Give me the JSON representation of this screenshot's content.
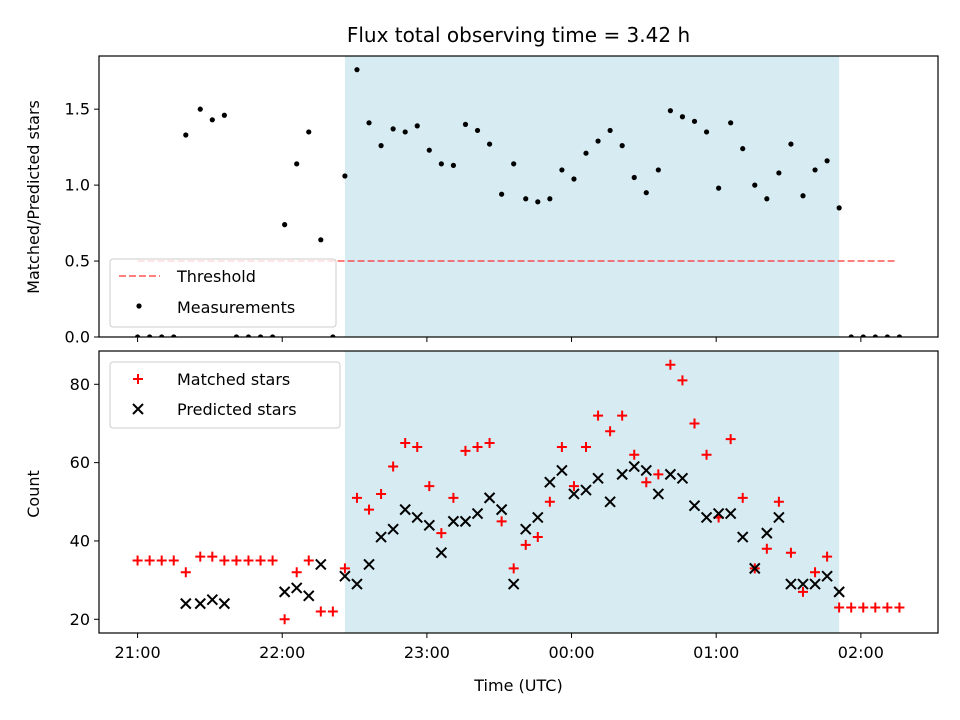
{
  "figure": {
    "title": "Flux total observing time = 3.42 h",
    "xlabel": "Time (UTC)"
  },
  "colors": {
    "shade": "#add8e6",
    "threshold": "#ff0000",
    "measurements": "#000000",
    "matched": "#ff0000",
    "predicted": "#000000"
  },
  "chart_data": [
    {
      "type": "scatter",
      "ylabel": "Matched/Predicted stars",
      "xlim": [
        20.7333,
        2.5333
      ],
      "ylim": [
        0,
        1.85
      ],
      "yticks": [
        0.0,
        0.5,
        1.0,
        1.5
      ],
      "ytick_labels": [
        "0.0",
        "0.5",
        "1.0",
        "1.5"
      ],
      "grid": false,
      "legend_position": "lower-left",
      "shaded_interval": [
        "22:26",
        "01:51"
      ],
      "threshold": {
        "name": "Threshold",
        "y": 0.5,
        "x": [
          "21:00",
          "02:14"
        ]
      },
      "series": [
        {
          "name": "Measurements",
          "points": [
            [
              "21:00",
              0
            ],
            [
              "21:05",
              0
            ],
            [
              "21:10",
              0
            ],
            [
              "21:15",
              0
            ],
            [
              "21:20",
              1.33
            ],
            [
              "21:26",
              1.5
            ],
            [
              "21:31",
              1.43
            ],
            [
              "21:36",
              1.46
            ],
            [
              "21:41",
              0
            ],
            [
              "21:46",
              0
            ],
            [
              "21:51",
              0
            ],
            [
              "21:56",
              0
            ],
            [
              "22:01",
              0.74
            ],
            [
              "22:06",
              1.14
            ],
            [
              "22:11",
              1.35
            ],
            [
              "22:16",
              0.64
            ],
            [
              "22:21",
              0
            ],
            [
              "22:26",
              1.06
            ],
            [
              "22:31",
              1.76
            ],
            [
              "22:36",
              1.41
            ],
            [
              "22:41",
              1.26
            ],
            [
              "22:46",
              1.37
            ],
            [
              "22:51",
              1.35
            ],
            [
              "22:56",
              1.39
            ],
            [
              "23:01",
              1.23
            ],
            [
              "23:06",
              1.14
            ],
            [
              "23:11",
              1.13
            ],
            [
              "23:16",
              1.4
            ],
            [
              "23:21",
              1.36
            ],
            [
              "23:26",
              1.27
            ],
            [
              "23:31",
              0.94
            ],
            [
              "23:36",
              1.14
            ],
            [
              "23:41",
              0.91
            ],
            [
              "23:46",
              0.89
            ],
            [
              "23:51",
              0.91
            ],
            [
              "23:56",
              1.1
            ],
            [
              "00:01",
              1.04
            ],
            [
              "00:06",
              1.21
            ],
            [
              "00:11",
              1.29
            ],
            [
              "00:16",
              1.36
            ],
            [
              "00:21",
              1.26
            ],
            [
              "00:26",
              1.05
            ],
            [
              "00:31",
              0.95
            ],
            [
              "00:36",
              1.1
            ],
            [
              "00:41",
              1.49
            ],
            [
              "00:46",
              1.45
            ],
            [
              "00:51",
              1.42
            ],
            [
              "00:56",
              1.35
            ],
            [
              "01:01",
              0.98
            ],
            [
              "01:06",
              1.41
            ],
            [
              "01:11",
              1.24
            ],
            [
              "01:16",
              1.0
            ],
            [
              "01:21",
              0.91
            ],
            [
              "01:26",
              1.08
            ],
            [
              "01:31",
              1.27
            ],
            [
              "01:36",
              0.93
            ],
            [
              "01:41",
              1.1
            ],
            [
              "01:46",
              1.16
            ],
            [
              "01:51",
              0.85
            ],
            [
              "01:56",
              0
            ],
            [
              "02:01",
              0
            ],
            [
              "02:06",
              0
            ],
            [
              "02:11",
              0
            ],
            [
              "02:16",
              0
            ]
          ]
        }
      ]
    },
    {
      "type": "scatter",
      "ylabel": "Count",
      "xlim": [
        20.7333,
        2.5333
      ],
      "ylim": [
        16.5,
        88.5
      ],
      "yticks": [
        20,
        40,
        60,
        80
      ],
      "ytick_labels": [
        "20",
        "40",
        "60",
        "80"
      ],
      "xticks": [
        "21:00",
        "22:00",
        "23:00",
        "00:00",
        "01:00",
        "02:00"
      ],
      "xtick_labels": [
        "21:00",
        "22:00",
        "23:00",
        "00:00",
        "01:00",
        "02:00"
      ],
      "grid": false,
      "legend_position": "upper-left",
      "shaded_interval": [
        "22:26",
        "01:51"
      ],
      "series": [
        {
          "name": "Matched stars",
          "marker": "plus",
          "points": [
            [
              "21:00",
              35
            ],
            [
              "21:05",
              35
            ],
            [
              "21:10",
              35
            ],
            [
              "21:15",
              35
            ],
            [
              "21:20",
              32
            ],
            [
              "21:26",
              36
            ],
            [
              "21:31",
              36
            ],
            [
              "21:36",
              35
            ],
            [
              "21:41",
              35
            ],
            [
              "21:46",
              35
            ],
            [
              "21:51",
              35
            ],
            [
              "21:56",
              35
            ],
            [
              "22:01",
              20
            ],
            [
              "22:06",
              32
            ],
            [
              "22:11",
              35
            ],
            [
              "22:16",
              22
            ],
            [
              "22:21",
              22
            ],
            [
              "22:26",
              33
            ],
            [
              "22:31",
              51
            ],
            [
              "22:36",
              48
            ],
            [
              "22:41",
              52
            ],
            [
              "22:46",
              59
            ],
            [
              "22:51",
              65
            ],
            [
              "22:56",
              64
            ],
            [
              "23:01",
              54
            ],
            [
              "23:06",
              42
            ],
            [
              "23:11",
              51
            ],
            [
              "23:16",
              63
            ],
            [
              "23:21",
              64
            ],
            [
              "23:26",
              65
            ],
            [
              "23:31",
              45
            ],
            [
              "23:36",
              33
            ],
            [
              "23:41",
              39
            ],
            [
              "23:46",
              41
            ],
            [
              "23:51",
              50
            ],
            [
              "23:56",
              64
            ],
            [
              "00:01",
              54
            ],
            [
              "00:06",
              64
            ],
            [
              "00:11",
              72
            ],
            [
              "00:16",
              68
            ],
            [
              "00:21",
              72
            ],
            [
              "00:26",
              62
            ],
            [
              "00:31",
              55
            ],
            [
              "00:36",
              57
            ],
            [
              "00:41",
              85
            ],
            [
              "00:46",
              81
            ],
            [
              "00:51",
              70
            ],
            [
              "00:56",
              62
            ],
            [
              "01:01",
              46
            ],
            [
              "01:06",
              66
            ],
            [
              "01:11",
              51
            ],
            [
              "01:16",
              33
            ],
            [
              "01:21",
              38
            ],
            [
              "01:26",
              50
            ],
            [
              "01:31",
              37
            ],
            [
              "01:36",
              27
            ],
            [
              "01:41",
              32
            ],
            [
              "01:46",
              36
            ],
            [
              "01:51",
              23
            ],
            [
              "01:56",
              23
            ],
            [
              "02:01",
              23
            ],
            [
              "02:06",
              23
            ],
            [
              "02:11",
              23
            ],
            [
              "02:16",
              23
            ]
          ]
        },
        {
          "name": "Predicted stars",
          "marker": "x",
          "points": [
            [
              "21:20",
              24
            ],
            [
              "21:26",
              24
            ],
            [
              "21:31",
              25
            ],
            [
              "21:36",
              24
            ],
            [
              "22:01",
              27
            ],
            [
              "22:06",
              28
            ],
            [
              "22:11",
              26
            ],
            [
              "22:16",
              34
            ],
            [
              "22:26",
              31
            ],
            [
              "22:31",
              29
            ],
            [
              "22:36",
              34
            ],
            [
              "22:41",
              41
            ],
            [
              "22:46",
              43
            ],
            [
              "22:51",
              48
            ],
            [
              "22:56",
              46
            ],
            [
              "23:01",
              44
            ],
            [
              "23:06",
              37
            ],
            [
              "23:11",
              45
            ],
            [
              "23:16",
              45
            ],
            [
              "23:21",
              47
            ],
            [
              "23:26",
              51
            ],
            [
              "23:31",
              48
            ],
            [
              "23:36",
              29
            ],
            [
              "23:41",
              43
            ],
            [
              "23:46",
              46
            ],
            [
              "23:51",
              55
            ],
            [
              "23:56",
              58
            ],
            [
              "00:01",
              52
            ],
            [
              "00:06",
              53
            ],
            [
              "00:11",
              56
            ],
            [
              "00:16",
              50
            ],
            [
              "00:21",
              57
            ],
            [
              "00:26",
              59
            ],
            [
              "00:31",
              58
            ],
            [
              "00:36",
              52
            ],
            [
              "00:41",
              57
            ],
            [
              "00:46",
              56
            ],
            [
              "00:51",
              49
            ],
            [
              "00:56",
              46
            ],
            [
              "01:01",
              47
            ],
            [
              "01:06",
              47
            ],
            [
              "01:11",
              41
            ],
            [
              "01:16",
              33
            ],
            [
              "01:21",
              42
            ],
            [
              "01:26",
              46
            ],
            [
              "01:31",
              29
            ],
            [
              "01:36",
              29
            ],
            [
              "01:41",
              29
            ],
            [
              "01:46",
              31
            ],
            [
              "01:51",
              27
            ]
          ]
        }
      ]
    }
  ]
}
